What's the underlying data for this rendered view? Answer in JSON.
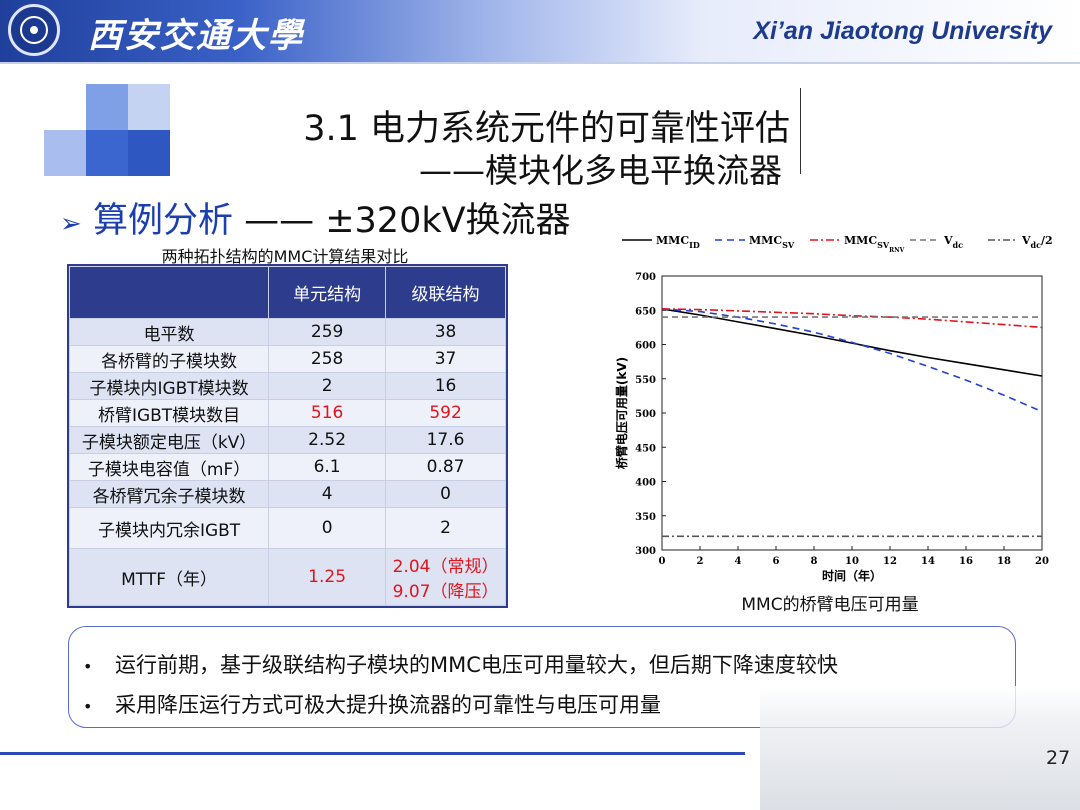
{
  "header": {
    "university_cn": "西安交通大學",
    "university_en": "Xi’an Jiaotong University"
  },
  "title": {
    "line1": "3.1 电力系统元件的可靠性评估",
    "line2": "——模块化多电平换流器"
  },
  "subtitle": {
    "arrow": "➢",
    "label": "算例分析",
    "rest": " —— ±320kV换流器"
  },
  "table": {
    "caption": "两种拓扑结构的MMC计算结果对比",
    "headers": [
      "",
      "单元结构",
      "级联结构"
    ],
    "rows": [
      [
        "电平数",
        "259",
        "38"
      ],
      [
        "各桥臂的子模块数",
        "258",
        "37"
      ],
      [
        "子模块内IGBT模块数",
        "2",
        "16"
      ],
      [
        "桥臂IGBT模块数目",
        "516",
        "592"
      ],
      [
        "子模块额定电压（kV）",
        "2.52",
        "17.6"
      ],
      [
        "子模块电容值（mF）",
        "6.1",
        "0.87"
      ],
      [
        "各桥臂冗余子模块数",
        "4",
        "0"
      ],
      [
        "子模块内冗余IGBT",
        "0",
        "2"
      ],
      [
        "MTTF（年）",
        "1.25",
        "2.04（常规）",
        "9.07（降压）"
      ]
    ],
    "highlight_color": "#e0141c",
    "header_color": "#2e3c8e"
  },
  "chart_data": {
    "type": "line",
    "caption": "MMC的桥臂电压可用量",
    "xlabel": "时间（年）",
    "ylabel": "桥臂电压可用量(kV)",
    "xlim": [
      0,
      20
    ],
    "ylim": [
      300,
      700
    ],
    "xticks": [
      0,
      2,
      4,
      6,
      8,
      10,
      12,
      14,
      16,
      18,
      20
    ],
    "yticks": [
      300,
      350,
      400,
      450,
      500,
      550,
      600,
      650,
      700
    ],
    "legend_position": "top",
    "series": [
      {
        "name": "MMC_ID",
        "legend_main": "MMC",
        "legend_sub": "ID",
        "legend_sub2": "",
        "color": "#000000",
        "dash": "",
        "x": [
          0,
          2,
          4,
          6,
          8,
          10,
          12,
          14,
          16,
          18,
          20
        ],
        "y": [
          652,
          643,
          633,
          623,
          613,
          602,
          591,
          581,
          572,
          563,
          554
        ]
      },
      {
        "name": "MMC_SV",
        "legend_main": "MMC",
        "legend_sub": "SV",
        "legend_sub2": "",
        "color": "#1f3fd8",
        "dash": "7,5",
        "x": [
          0,
          2,
          4,
          6,
          8,
          10,
          12,
          14,
          16,
          18,
          20
        ],
        "y": [
          652,
          648,
          640,
          630,
          618,
          603,
          587,
          568,
          548,
          526,
          502
        ]
      },
      {
        "name": "MMC_SVRNV",
        "legend_main": "MMC",
        "legend_sub": "SV",
        "legend_sub2": "RNV",
        "color": "#e0141c",
        "dash": "8,3,2,3",
        "x": [
          0,
          2,
          4,
          6,
          8,
          10,
          12,
          14,
          16,
          18,
          20
        ],
        "y": [
          652,
          651,
          649,
          647,
          645,
          642,
          640,
          637,
          633,
          629,
          625
        ]
      },
      {
        "name": "V_dc",
        "legend_main": "V",
        "legend_sub": "dc",
        "legend_sub2": "",
        "color": "#777777",
        "dash": "6,4",
        "x": [
          0,
          20
        ],
        "y": [
          640,
          640
        ]
      },
      {
        "name": "V_dc/2",
        "legend_main": "V",
        "legend_sub": "dc",
        "legend_sub2": "",
        "legend_suffix": "/2",
        "color": "#555555",
        "dash": "7,3,2,3",
        "x": [
          0,
          20
        ],
        "y": [
          320,
          320
        ]
      }
    ]
  },
  "bullets": [
    "运行前期，基于级联结构子模块的MMC电压可用量较大，但后期下降速度较快",
    "采用降压运行方式可极大提升换流器的可靠性与电压可用量"
  ],
  "bullet_symbol": "•",
  "page_number": "27"
}
